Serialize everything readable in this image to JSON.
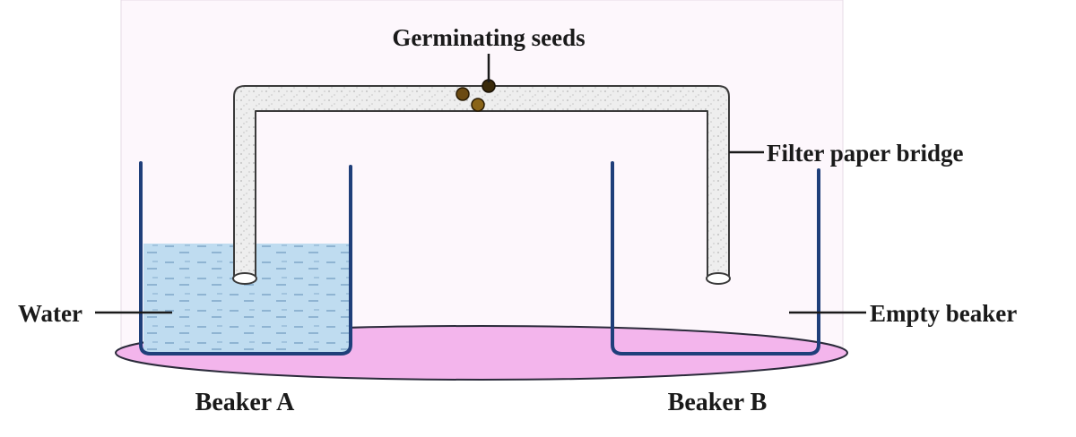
{
  "labels": {
    "seeds": "Germinating seeds",
    "bridge": "Filter paper bridge",
    "water": "Water",
    "empty": "Empty beaker",
    "beaker_a": "Beaker A",
    "beaker_b": "Beaker B"
  },
  "colors": {
    "beaker_outline": "#1f3f7a",
    "water_fill": "#bcd9ee",
    "base_fill": "#f3b5ec",
    "bridge_fill": "#ececec",
    "backdrop": "#fdf7fc",
    "seeds": "#6b4a12"
  }
}
